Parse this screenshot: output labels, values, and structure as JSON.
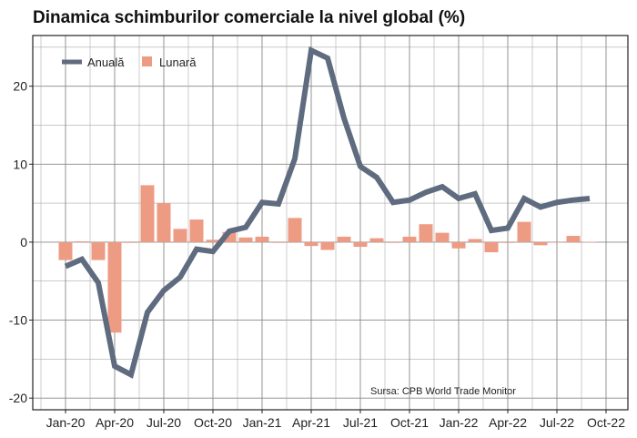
{
  "chart_data": {
    "type": "bar+line",
    "title": "Dinamica schimburilor comerciale la nivel global (%)",
    "xlabel": "",
    "ylabel": "",
    "ylim": [
      -21.5,
      26.5
    ],
    "yticks": [
      -20,
      -10,
      0,
      10,
      20
    ],
    "grid": true,
    "legend": "top-left",
    "annotation": "Sursa: CPB World Trade Monitor",
    "x_tick_labels": [
      "Jan-20",
      "Apr-20",
      "Jul-20",
      "Oct-20",
      "Jan-21",
      "Apr-21",
      "Jul-21",
      "Oct-21",
      "Jan-22",
      "Apr-22",
      "Jul-22",
      "Oct-22"
    ],
    "categories": [
      "Jan-20",
      "Feb-20",
      "Mar-20",
      "Apr-20",
      "May-20",
      "Jun-20",
      "Jul-20",
      "Aug-20",
      "Sep-20",
      "Oct-20",
      "Nov-20",
      "Dec-20",
      "Jan-21",
      "Feb-21",
      "Mar-21",
      "Apr-21",
      "May-21",
      "Jun-21",
      "Jul-21",
      "Aug-21",
      "Sep-21",
      "Oct-21",
      "Nov-21",
      "Dec-21",
      "Jan-22",
      "Feb-22",
      "Mar-22",
      "Apr-22",
      "May-22",
      "Jun-22",
      "Jul-22",
      "Aug-22",
      "Sep-22"
    ],
    "series": [
      {
        "name": "Anuală",
        "type": "line",
        "color": "#5f6b7e",
        "values": [
          -3.1,
          -2.2,
          -5.2,
          -15.9,
          -17.0,
          -9.0,
          -6.2,
          -4.5,
          -0.9,
          -1.2,
          1.4,
          1.9,
          5.1,
          4.9,
          10.7,
          24.6,
          23.6,
          15.9,
          9.7,
          8.3,
          5.1,
          5.4,
          6.4,
          7.1,
          5.6,
          6.2,
          1.5,
          1.8,
          5.6,
          4.5,
          5.1,
          5.4,
          5.6
        ]
      },
      {
        "name": "Lunară",
        "type": "bar",
        "color": "#ee9b84",
        "values": [
          -2.3,
          0.1,
          -2.3,
          -11.6,
          -0.1,
          7.3,
          5.0,
          1.7,
          2.9,
          0.3,
          1.3,
          0.6,
          0.7,
          -0.1,
          3.1,
          -0.5,
          -1.0,
          0.7,
          -0.6,
          0.5,
          -0.1,
          0.7,
          2.3,
          1.2,
          -0.8,
          0.4,
          -1.3,
          -0.1,
          2.6,
          -0.4,
          0.0,
          0.8,
          0.05
        ]
      }
    ]
  }
}
